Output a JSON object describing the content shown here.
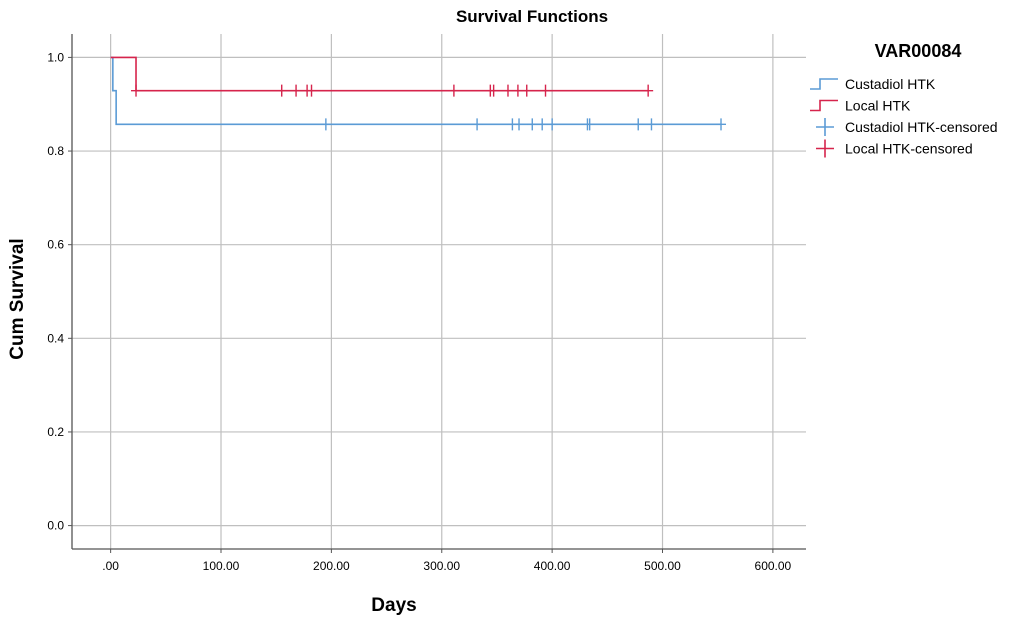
{
  "chart_data": {
    "type": "line",
    "title": "Survival Functions",
    "xlabel": "Days",
    "ylabel": "Cum Survival",
    "xlim": [
      -35,
      630
    ],
    "ylim": [
      -0.05,
      1.05
    ],
    "x_ticks": [
      0,
      100,
      200,
      300,
      400,
      500,
      600
    ],
    "x_tick_labels": [
      ".00",
      "100.00",
      "200.00",
      "300.00",
      "400.00",
      "500.00",
      "600.00"
    ],
    "y_ticks": [
      0,
      0.2,
      0.4,
      0.6,
      0.8,
      1.0
    ],
    "y_tick_labels": [
      "0.0",
      "0.2",
      "0.4",
      "0.6",
      "0.8",
      "1.0"
    ],
    "grid": true,
    "legend_title": "VAR00084",
    "legend_position": "right",
    "series": [
      {
        "name": "Custadiol HTK",
        "color": "#5b9bd5",
        "steps": [
          [
            0,
            1.0
          ],
          [
            2,
            0.929
          ],
          [
            5,
            0.857
          ],
          [
            553,
            0.857
          ]
        ]
      },
      {
        "name": "Local HTK",
        "color": "#d6244c",
        "steps": [
          [
            0,
            1.0
          ],
          [
            23,
            0.929
          ],
          [
            487,
            0.929
          ]
        ]
      }
    ],
    "censored": [
      {
        "name": "Custadiol HTK-censored",
        "color": "#5b9bd5",
        "y": 0.857,
        "x": [
          195,
          332,
          364,
          370,
          382,
          391,
          400,
          432,
          434,
          478,
          490,
          553
        ]
      },
      {
        "name": "Local HTK-censored",
        "color": "#d6244c",
        "y": 0.929,
        "x": [
          23,
          155,
          168,
          178,
          182,
          311,
          344,
          347,
          360,
          369,
          377,
          394,
          487
        ]
      }
    ]
  }
}
